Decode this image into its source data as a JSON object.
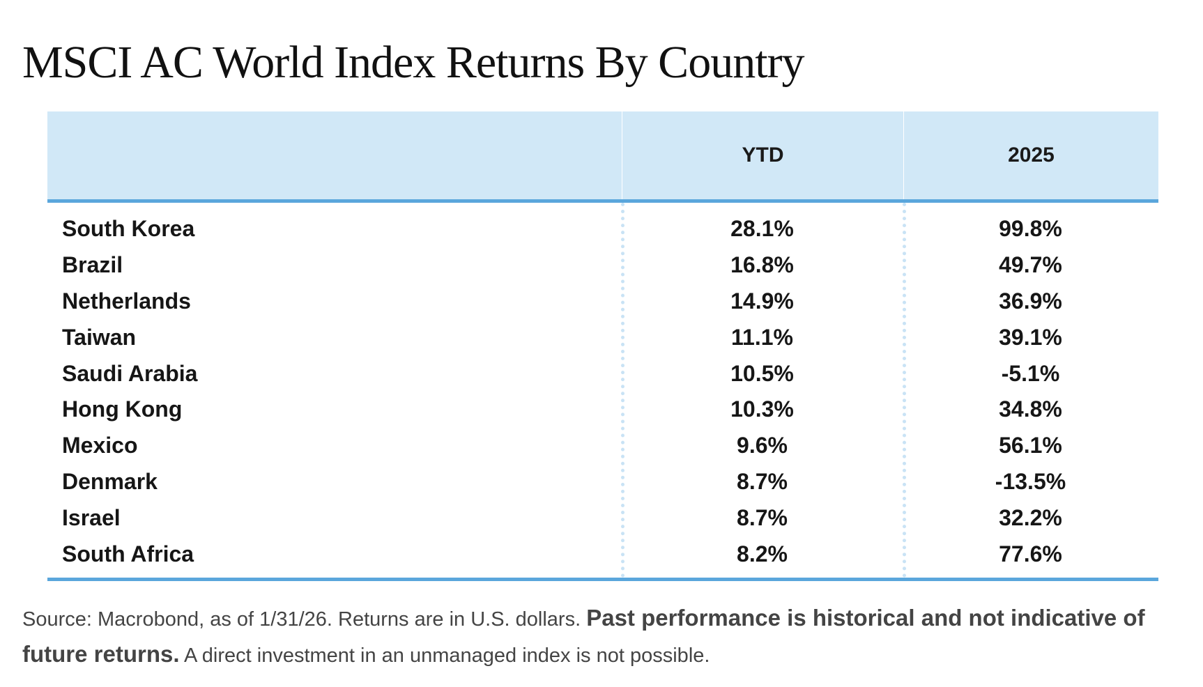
{
  "title": "MSCI AC World Index Returns By Country",
  "chart_data": {
    "type": "table",
    "title": "MSCI AC World Index Returns By Country",
    "columns": [
      "",
      "YTD",
      "2025"
    ],
    "rows": [
      {
        "country": "South Korea",
        "ytd": "28.1%",
        "y2025": "99.8%"
      },
      {
        "country": "Brazil",
        "ytd": "16.8%",
        "y2025": "49.7%"
      },
      {
        "country": "Netherlands",
        "ytd": "14.9%",
        "y2025": "36.9%"
      },
      {
        "country": "Taiwan",
        "ytd": "11.1%",
        "y2025": "39.1%"
      },
      {
        "country": "Saudi Arabia",
        "ytd": "10.5%",
        "y2025": "-5.1%"
      },
      {
        "country": "Hong Kong",
        "ytd": "10.3%",
        "y2025": "34.8%"
      },
      {
        "country": "Mexico",
        "ytd": "9.6%",
        "y2025": "56.1%"
      },
      {
        "country": "Denmark",
        "ytd": "8.7%",
        "y2025": "-13.5%"
      },
      {
        "country": "Israel",
        "ytd": "8.7%",
        "y2025": "32.2%"
      },
      {
        "country": "South Africa",
        "ytd": "8.2%",
        "y2025": "77.6%"
      }
    ]
  },
  "footnote": {
    "source": "Source: Macrobond, as of 1/31/26. Returns are in U.S. dollars. ",
    "disclaimer_bold": "Past performance is historical and not indicative of future returns.",
    "tail": " A direct investment in an unmanaged index is not possible."
  },
  "colors": {
    "header_bg": "#d1e8f7",
    "rule": "#5aa6dc",
    "dotted_divider": "#c9e3f5"
  }
}
